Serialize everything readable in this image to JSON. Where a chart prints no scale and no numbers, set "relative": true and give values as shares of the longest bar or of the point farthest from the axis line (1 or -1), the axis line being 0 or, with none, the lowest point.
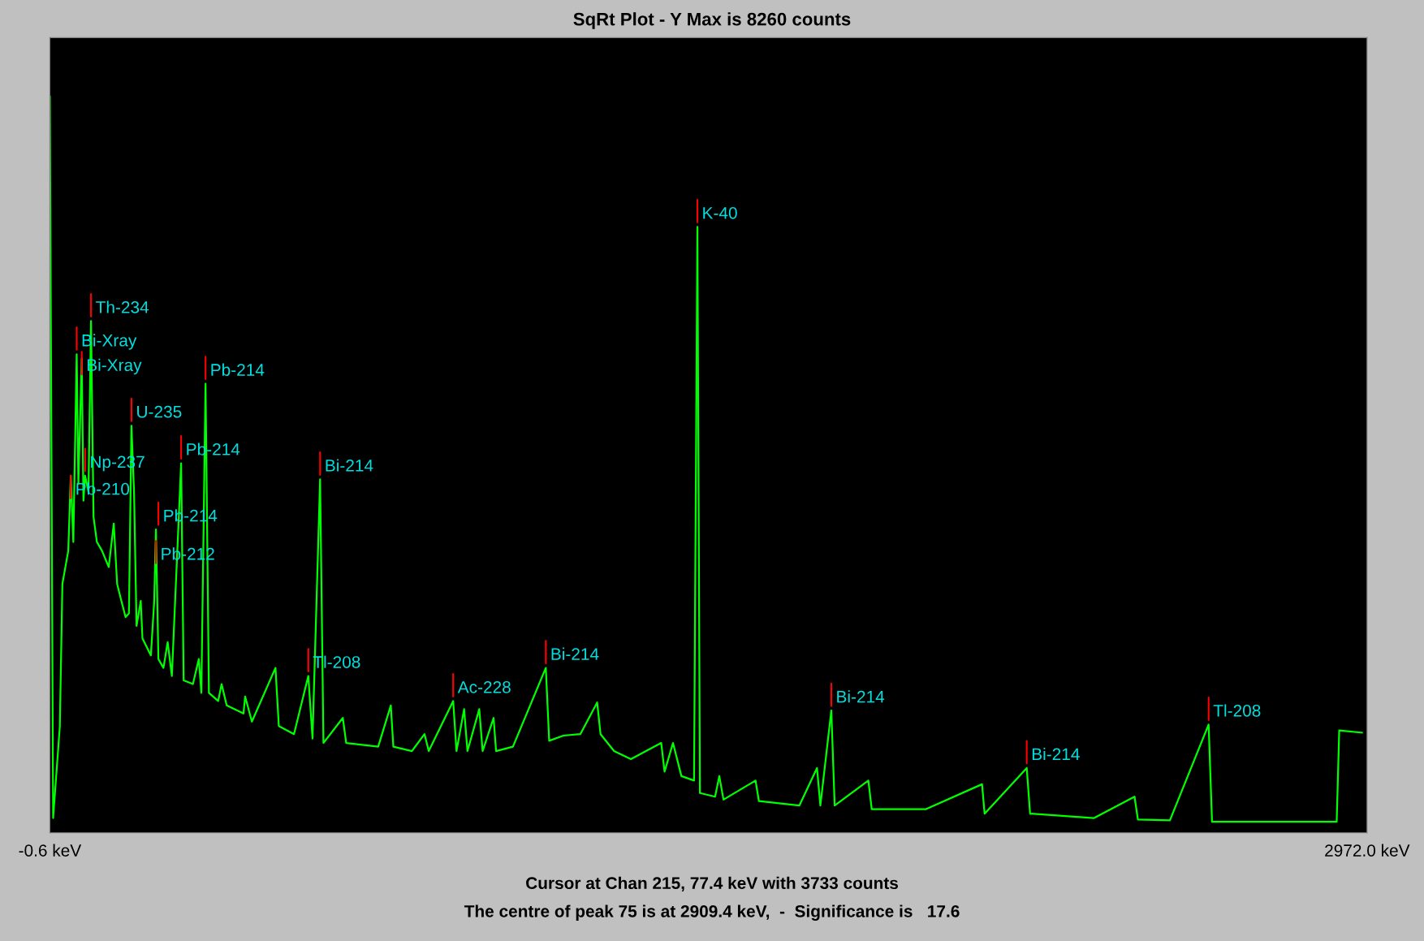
{
  "chart_data": {
    "type": "line",
    "title": "SqRt Plot - Y Max is 8260 counts",
    "relative": true,
    "color": "#00ff00",
    "line_style": "solid",
    "marker": "none",
    "grid": false,
    "legend": false,
    "tick_labels": "x",
    "xlim": [
      -0.6,
      2972.0
    ],
    "xticks": [
      {
        "value": -0.6,
        "label": "-0.6 keV"
      },
      {
        "value": 2972.0,
        "label": "2972.0 keV"
      }
    ],
    "x": [
      -0.6,
      6.8,
      22.0,
      27.7,
      41.0,
      46.7,
      52.4,
      60.0,
      63.8,
      71.4,
      75.2,
      79.0,
      86.6,
      92.3,
      98.0,
      105.6,
      117.1,
      132.3,
      143.7,
      151.3,
      160.8,
      170.3,
      177.9,
      183.6,
      189.4,
      195.1,
      204.6,
      208.4,
      227.4,
      235.0,
      238.8,
      244.4,
      255.8,
      265.3,
      274.8,
      295.7,
      301.4,
      322.3,
      335.6,
      341.3,
      350.8,
      358.4,
      379.3,
      387.0,
      398.4,
      436.4,
      440.2,
      455.4,
      508.6,
      516.2,
      550.4,
      582.7,
      592.2,
      609.3,
      616.9,
      660.6,
      668.2,
      740.4,
      768.9,
      774.6,
      816.5,
      845.0,
      854.5,
      909.6,
      917.2,
      934.3,
      941.9,
      968.5,
      976.1,
      1000.8,
      1006.5,
      1044.5,
      1118.7,
      1126.3,
      1158.6,
      1196.6,
      1234.6,
      1242.2,
      1272.7,
      1310.7,
      1379.1,
      1386.7,
      1405.7,
      1424.7,
      1453.2,
      1460.8,
      1466.5,
      1500.7,
      1510.2,
      1519.7,
      1592.0,
      1599.6,
      1690.8,
      1730.7,
      1738.3,
      1763.0,
      1770.6,
      1846.6,
      1854.2,
      1975.9,
      2103.2,
      2108.9,
      2204.0,
      2211.6,
      2356.0,
      2447.3,
      2454.9,
      2527.1,
      2614.5,
      2622.2,
      2736.2,
      2903.5,
      2909.2,
      2960.5
    ],
    "values": [
      1.0,
      0.02,
      0.145,
      0.338,
      0.383,
      0.485,
      0.395,
      0.65,
      0.474,
      0.644,
      0.451,
      0.485,
      0.463,
      0.695,
      0.429,
      0.395,
      0.383,
      0.361,
      0.42,
      0.338,
      0.315,
      0.293,
      0.298,
      0.553,
      0.463,
      0.281,
      0.315,
      0.264,
      0.241,
      0.315,
      0.412,
      0.236,
      0.224,
      0.259,
      0.213,
      0.502,
      0.207,
      0.202,
      0.236,
      0.19,
      0.61,
      0.19,
      0.179,
      0.202,
      0.173,
      0.162,
      0.185,
      0.151,
      0.224,
      0.145,
      0.134,
      0.213,
      0.128,
      0.48,
      0.122,
      0.156,
      0.122,
      0.117,
      0.173,
      0.117,
      0.111,
      0.134,
      0.111,
      0.179,
      0.111,
      0.168,
      0.111,
      0.168,
      0.111,
      0.156,
      0.111,
      0.117,
      0.224,
      0.125,
      0.132,
      0.134,
      0.177,
      0.134,
      0.111,
      0.1,
      0.122,
      0.083,
      0.122,
      0.077,
      0.071,
      0.823,
      0.054,
      0.049,
      0.077,
      0.045,
      0.071,
      0.043,
      0.037,
      0.088,
      0.037,
      0.166,
      0.037,
      0.071,
      0.032,
      0.032,
      0.066,
      0.026,
      0.088,
      0.026,
      0.02,
      0.049,
      0.018,
      0.017,
      0.147,
      0.015,
      0.015,
      0.015,
      0.139,
      0.136
    ],
    "annotations": [
      {
        "text": "Pb-210",
        "x": 46.7,
        "y": 0.485
      },
      {
        "text": "Bi-Xray",
        "x": 60.0,
        "y": 0.65
      },
      {
        "text": "Bi-Xray",
        "x": 71.4,
        "y": 0.644
      },
      {
        "text": "Th-234",
        "x": 92.3,
        "y": 0.695
      },
      {
        "text": "Np-237",
        "x": 79.0,
        "y": 0.485
      },
      {
        "text": "U-235",
        "x": 183.6,
        "y": 0.553
      },
      {
        "text": "Pb-214",
        "x": 350.8,
        "y": 0.61
      },
      {
        "text": "Pb-214",
        "x": 295.7,
        "y": 0.502
      },
      {
        "text": "Pb-214",
        "x": 244.4,
        "y": 0.412
      },
      {
        "text": "Pb-212",
        "x": 238.8,
        "y": 0.36
      },
      {
        "text": "Bi-214",
        "x": 609.3,
        "y": 0.48
      },
      {
        "text": "Tl-208",
        "x": 582.7,
        "y": 0.213
      },
      {
        "text": "Ac-228",
        "x": 909.6,
        "y": 0.179
      },
      {
        "text": "Bi-214",
        "x": 1118.7,
        "y": 0.224
      },
      {
        "text": "K-40",
        "x": 1460.8,
        "y": 0.823
      },
      {
        "text": "Bi-214",
        "x": 1763.0,
        "y": 0.166
      },
      {
        "text": "Bi-214",
        "x": 2204.0,
        "y": 0.088
      },
      {
        "text": "Tl-208",
        "x": 2614.5,
        "y": 0.147
      },
      "Cursor at Chan 215, 77.4 keV with 3733 counts",
      "The centre of peak 75 is at 2909.4 keV,  -  Significance is   17.6"
    ]
  }
}
